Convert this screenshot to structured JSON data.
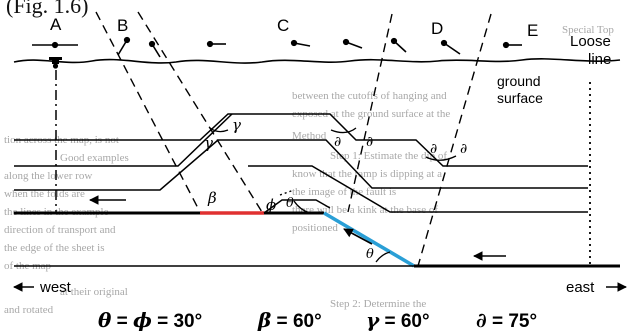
{
  "header_fragment": "(Fig. 1.6)",
  "faint_page_text": {
    "corner_label": "Special Top",
    "right_column": [
      "between the cutoffs of hanging and",
      "exposed at the ground surface at the",
      "Method",
      "Step 1: Estimate the dip of",
      "know that the ramp is dipping at a",
      "the image of the fault is",
      "there will be a kink at the base of",
      "positioned",
      "Step 2: Determine the"
    ],
    "left_column": [
      "tion across the map, is not",
      "Good examples",
      "along the lower row",
      "when the folds are",
      "the lines in the example",
      "direction of transport and",
      "the edge of the sheet is",
      "of the map",
      "at their original",
      "and rotated"
    ]
  },
  "top_labels": {
    "a": "A",
    "b": "B",
    "c": "C",
    "d": "D",
    "e": "E"
  },
  "loose_line_label": [
    "Loose",
    "line"
  ],
  "ground_surface_label": [
    "ground",
    "surface"
  ],
  "angle_symbols": {
    "gamma": "γ",
    "beta": "β",
    "phi": "ϕ",
    "theta": "θ",
    "delta": "∂"
  },
  "direction_labels": {
    "west": "west",
    "east": "east"
  },
  "legend": [
    {
      "symbols": [
        "θ",
        "ϕ"
      ],
      "value": "30°"
    },
    {
      "symbols": [
        "β"
      ],
      "value": "60°"
    },
    {
      "symbols": [
        "γ"
      ],
      "value": "60°"
    },
    {
      "symbols": [
        "∂"
      ],
      "value": "75°"
    }
  ],
  "colors": {
    "ink": "#000000",
    "flat_highlight": "#e03030",
    "ramp_highlight": "#2a9fd6",
    "faint_text": "#a8a8a8"
  }
}
